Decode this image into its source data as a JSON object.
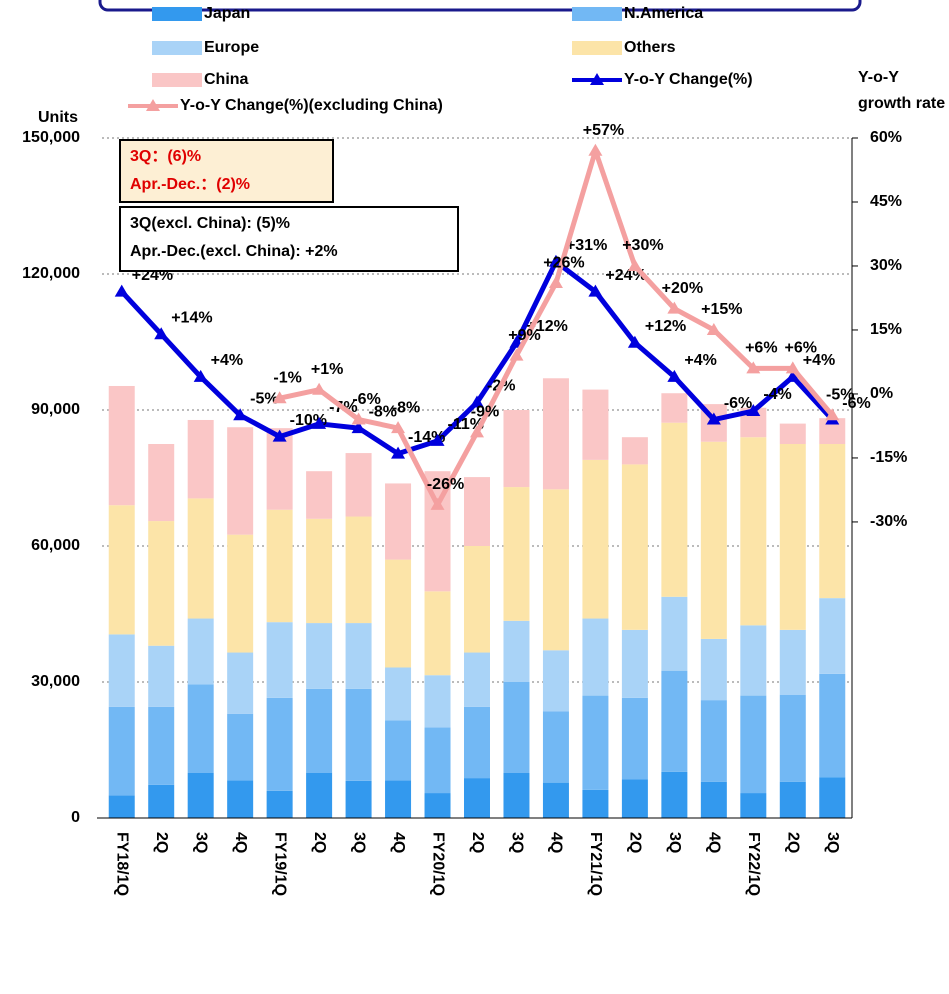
{
  "chart_data": {
    "type": "bar",
    "y_label": "Units",
    "y2_label": [
      "Y-o-Y",
      "growth rate"
    ],
    "categories": [
      "FY18/1Q",
      "2Q",
      "3Q",
      "4Q",
      "FY19/1Q",
      "2Q",
      "3Q",
      "4Q",
      "FY20/1Q",
      "2Q",
      "3Q",
      "4Q",
      "FY21/1Q",
      "2Q",
      "3Q",
      "4Q",
      "FY22/1Q",
      "2Q",
      "3Q"
    ],
    "ylim": [
      0,
      150000
    ],
    "yticks": [
      0,
      {
        "value": 30000,
        "label": "30,000"
      },
      {
        "value": 60000,
        "label": "60,000"
      },
      {
        "value": 90000,
        "label": "90,000"
      },
      {
        "value": 120000,
        "label": "120,000"
      },
      {
        "value": 150000,
        "label": "150,000"
      }
    ],
    "y2lim": [
      -99.4,
      60
    ],
    "y2ticks": [
      {
        "value": 60,
        "label": "60%"
      },
      {
        "value": 45,
        "label": "45%"
      },
      {
        "value": 30,
        "label": "30%"
      },
      {
        "value": 15,
        "label": "15%"
      },
      {
        "value": 0,
        "label": "0%"
      },
      {
        "value": -15,
        "label": "-15%"
      },
      {
        "value": -30,
        "label": "-30%"
      }
    ],
    "grid": true,
    "stacked": true,
    "series": [
      {
        "name": "Japan",
        "type": "bar",
        "color": "#3399ee",
        "values": [
          5000,
          7300,
          10000,
          8300,
          6000,
          10000,
          8200,
          8300,
          5500,
          8800,
          10000,
          7800,
          6200,
          8500,
          10200,
          8000,
          5500,
          8000,
          9000
        ]
      },
      {
        "name": "N.America",
        "type": "bar",
        "color": "#72b8f4",
        "values": [
          19500,
          17200,
          19500,
          14700,
          20500,
          18500,
          20300,
          13200,
          14500,
          15700,
          20000,
          15700,
          20800,
          18000,
          22300,
          18000,
          21500,
          19200,
          22800
        ]
      },
      {
        "name": "Europe",
        "type": "bar",
        "color": "#a9d3f7",
        "values": [
          16000,
          13500,
          14500,
          13500,
          16700,
          14500,
          14500,
          11700,
          11500,
          12000,
          13500,
          13500,
          17000,
          15000,
          16300,
          13500,
          15500,
          14300,
          16700
        ]
      },
      {
        "name": "Others",
        "type": "bar",
        "color": "#fce4a8",
        "values": [
          28500,
          27500,
          26500,
          26000,
          24800,
          23000,
          23500,
          23800,
          18500,
          23500,
          29500,
          35500,
          35000,
          36500,
          38400,
          43500,
          41500,
          41000,
          34000
        ]
      },
      {
        "name": "China",
        "type": "bar",
        "color": "#fac6c6",
        "values": [
          26300,
          17000,
          17300,
          23700,
          18000,
          10500,
          14000,
          16800,
          26500,
          15200,
          17000,
          24500,
          15500,
          6000,
          6500,
          8300,
          6500,
          4500,
          5700
        ]
      },
      {
        "name": "Y-o-Y Change(%)",
        "type": "line",
        "axis": "y2",
        "color": "#0000dd",
        "values": [
          24,
          14,
          4,
          -5,
          -10,
          -7,
          -8,
          -14,
          -11,
          -2,
          12,
          31,
          24,
          12,
          4,
          -6,
          -4,
          4,
          -6
        ],
        "value_labels": [
          "+24%",
          "+14%",
          "+4%",
          "-5%",
          "-10%",
          "-7%",
          "-8%",
          "-14%",
          "-11%",
          "-2%",
          "+12%",
          "+31%",
          "+24%",
          "+12%",
          "+4%",
          "-6%",
          "-4%",
          "+4%",
          "-6%"
        ]
      },
      {
        "name": "Y-o-Y Change(%)(excluding China)",
        "type": "line",
        "axis": "y2",
        "color": "#f4a0a0",
        "values": [
          null,
          null,
          null,
          null,
          -1,
          1,
          -6,
          -8,
          -26,
          -9,
          9,
          26,
          57,
          30,
          20,
          15,
          6,
          6,
          -5
        ],
        "value_labels": [
          null,
          null,
          null,
          null,
          "-1%",
          "+1%",
          "-6%",
          "-8%",
          "-26%",
          "-9%",
          "+9%",
          "+26%",
          "+57%",
          "+30%",
          "+20%",
          "+15%",
          "+6%",
          "+6%",
          "-5%"
        ]
      }
    ],
    "annotations": [
      {
        "lines": [
          "3Q：(6)%",
          "Apr.-Dec.：(2)%"
        ]
      },
      {
        "lines": [
          "3Q(excl. China): (5)%",
          "Apr.-Dec.(excl. China): +2%"
        ]
      }
    ]
  }
}
